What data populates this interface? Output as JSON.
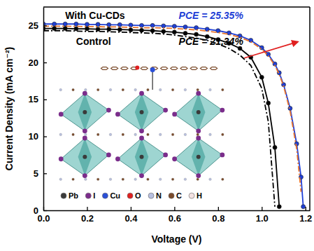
{
  "chart_data": {
    "type": "line",
    "x_label": "Voltage (V)",
    "y_label": "Current Density (mA cm⁻²)",
    "xlim": [
      0,
      1.22
    ],
    "ylim": [
      0,
      27.5
    ],
    "xticks": [
      {
        "value": 0,
        "label": "0.0"
      },
      0.2,
      0.4,
      0.6,
      0.8,
      {
        "value": 1,
        "label": "1.0"
      },
      1.2
    ],
    "yticks": [
      0,
      5,
      10,
      15,
      20,
      25
    ],
    "x": [
      0,
      0.05,
      0.1,
      0.15,
      0.2,
      0.25,
      0.3,
      0.35,
      0.4,
      0.45,
      0.5,
      0.55,
      0.6,
      0.65,
      0.7,
      0.75,
      0.8,
      0.85,
      0.9,
      0.95,
      1.0,
      1.03,
      1.06,
      1.08,
      1.1,
      1.13,
      1.16,
      1.18,
      1.19,
      1.2
    ],
    "series": [
      {
        "color": "#1f3fd6",
        "marker": "circle",
        "line_style": "solid",
        "values": [
          25.2,
          25.2,
          25.2,
          25.2,
          25.15,
          25.15,
          25.1,
          25.1,
          25.05,
          25.0,
          25.0,
          24.95,
          24.9,
          24.8,
          24.7,
          24.5,
          24.3,
          24.0,
          23.6,
          23.0,
          22.0,
          21.1,
          19.8,
          18.6,
          17.0,
          13.8,
          9.0,
          4.5,
          0.5,
          null
        ]
      },
      {
        "color": "#e8742c",
        "line_style": "dashdot",
        "values": [
          24.9,
          24.9,
          24.9,
          24.88,
          24.85,
          24.85,
          24.8,
          24.8,
          24.75,
          24.7,
          24.7,
          24.65,
          24.6,
          24.5,
          24.4,
          24.25,
          24.05,
          23.8,
          23.4,
          22.8,
          21.8,
          20.9,
          19.6,
          18.4,
          16.8,
          13.4,
          8.3,
          2.5,
          null,
          null
        ]
      },
      {
        "color": "#000000",
        "marker": "circle",
        "line_style": "solid",
        "values": [
          24.6,
          24.6,
          24.6,
          24.55,
          24.55,
          24.5,
          24.5,
          24.45,
          24.4,
          24.35,
          24.3,
          24.2,
          24.1,
          23.95,
          23.8,
          23.5,
          23.1,
          22.6,
          21.9,
          20.7,
          18.0,
          14.5,
          8.5,
          0.5,
          null,
          null,
          null,
          null,
          null,
          null
        ]
      },
      {
        "color": "#000000",
        "line_style": "dashdot",
        "values": [
          24.3,
          24.3,
          24.3,
          24.25,
          24.2,
          24.2,
          24.15,
          24.1,
          24.05,
          24.0,
          23.95,
          23.85,
          23.7,
          23.5,
          23.3,
          23.0,
          22.5,
          21.9,
          21.0,
          19.6,
          16.5,
          12.0,
          0.5,
          null,
          null,
          null,
          null,
          null,
          null,
          null
        ]
      }
    ],
    "annotations": [
      {
        "text": "With Cu-CDs",
        "color": "#000000"
      },
      {
        "text": "PCE = 25.35%",
        "color": "#1f3fd6"
      },
      {
        "text": "Control",
        "color": "#000000"
      },
      {
        "text": "PCE = 21.34%",
        "color": "#000000"
      }
    ],
    "inset_legend": [
      {
        "label": "Pb",
        "color": "#3a3a3a"
      },
      {
        "label": "I",
        "color": "#7b2d8b"
      },
      {
        "label": "Cu",
        "color": "#2a4fd8"
      },
      {
        "label": "O",
        "color": "#e02020"
      },
      {
        "label": "N",
        "color": "#b8c0e0"
      },
      {
        "label": "C",
        "color": "#7a4a2a"
      },
      {
        "label": "H",
        "color": "#f3e2e2"
      }
    ]
  }
}
